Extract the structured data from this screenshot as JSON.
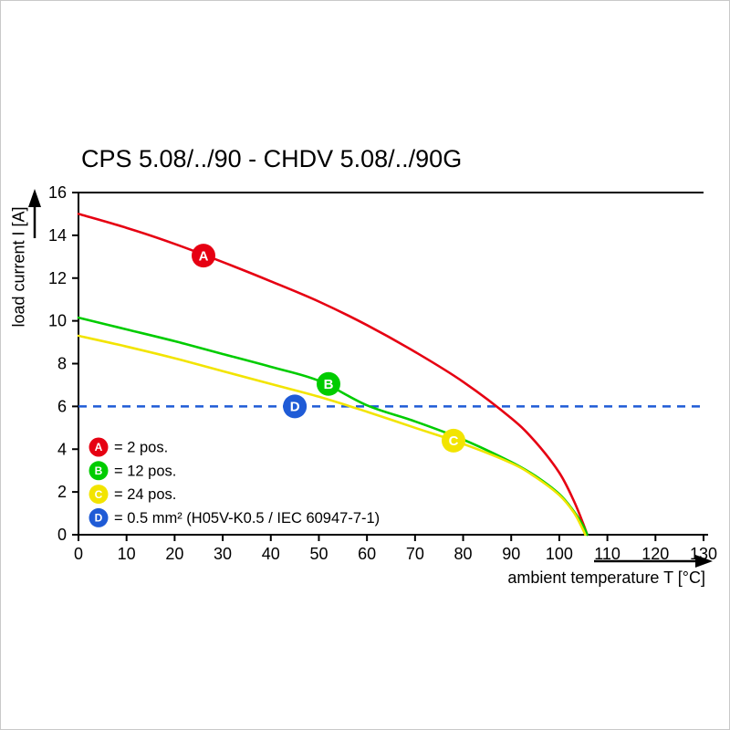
{
  "page": {
    "background": "#ffffff",
    "border_color": "#c9c9c9"
  },
  "chart_data": {
    "type": "line",
    "title": "CPS 5.08/../90 - CHDV 5.08/../90G",
    "xlabel": "ambient temperature T [°C]",
    "ylabel": "load current I [A]",
    "xlim": [
      0,
      130
    ],
    "ylim": [
      0,
      16
    ],
    "xticks": [
      0,
      10,
      20,
      30,
      40,
      50,
      60,
      70,
      80,
      90,
      100,
      110,
      120,
      130
    ],
    "yticks": [
      0,
      2,
      4,
      6,
      8,
      10,
      12,
      14,
      16
    ],
    "grid": false,
    "axis_color": "#000000",
    "marker_text_color": "#ffffff",
    "legend_position": "bottom-left-inside",
    "series": [
      {
        "id": "A",
        "legend_label": "= 2 pos.",
        "color": "#e60012",
        "marker_xy": [
          26,
          13.05
        ],
        "points": [
          [
            0,
            15.0
          ],
          [
            10,
            14.35
          ],
          [
            20,
            13.6
          ],
          [
            30,
            12.75
          ],
          [
            40,
            11.85
          ],
          [
            50,
            10.9
          ],
          [
            60,
            9.8
          ],
          [
            70,
            8.55
          ],
          [
            80,
            7.15
          ],
          [
            90,
            5.45
          ],
          [
            95,
            4.35
          ],
          [
            100,
            2.9
          ],
          [
            103,
            1.6
          ],
          [
            105,
            0.5
          ],
          [
            105.8,
            0
          ]
        ]
      },
      {
        "id": "B",
        "legend_label": "= 12 pos.",
        "color": "#00cc00",
        "marker_xy": [
          52,
          7.05
        ],
        "points": [
          [
            0,
            10.15
          ],
          [
            10,
            9.6
          ],
          [
            20,
            9.05
          ],
          [
            30,
            8.45
          ],
          [
            40,
            7.85
          ],
          [
            50,
            7.2
          ],
          [
            60,
            6.05
          ],
          [
            70,
            5.3
          ],
          [
            80,
            4.45
          ],
          [
            90,
            3.4
          ],
          [
            95,
            2.75
          ],
          [
            100,
            1.9
          ],
          [
            103,
            1.1
          ],
          [
            105,
            0.4
          ],
          [
            105.8,
            0
          ]
        ]
      },
      {
        "id": "C",
        "legend_label": "= 24 pos.",
        "color": "#f2e400",
        "marker_xy": [
          78,
          4.4
        ],
        "points": [
          [
            0,
            9.3
          ],
          [
            10,
            8.8
          ],
          [
            20,
            8.25
          ],
          [
            30,
            7.65
          ],
          [
            40,
            7.05
          ],
          [
            50,
            6.45
          ],
          [
            60,
            5.75
          ],
          [
            70,
            5.0
          ],
          [
            80,
            4.25
          ],
          [
            90,
            3.35
          ],
          [
            95,
            2.7
          ],
          [
            100,
            1.85
          ],
          [
            103,
            1.05
          ],
          [
            104.8,
            0.3
          ],
          [
            105.4,
            0
          ]
        ]
      }
    ],
    "reference_line": {
      "id": "D",
      "legend_label": "= 0.5 mm² (H05V-K0.5 / IEC 60947-7-1)",
      "color": "#1f5bd6",
      "y": 6,
      "line_style": "dashed",
      "marker_xy": [
        45,
        6
      ]
    }
  }
}
